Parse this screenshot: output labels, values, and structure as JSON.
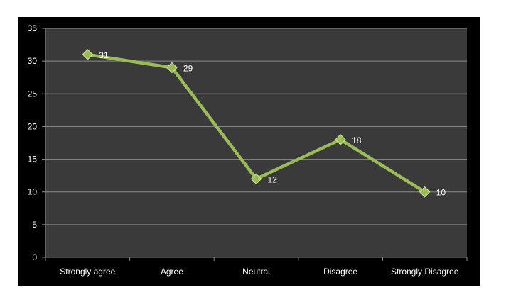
{
  "chart_data": {
    "type": "line",
    "categories": [
      "Strongly agree",
      "Agree",
      "Neutral",
      "Disagree",
      "Strongly Disagree"
    ],
    "series": [
      {
        "values": [
          31,
          29,
          12,
          18,
          10
        ]
      }
    ],
    "data_labels": [
      "31",
      "29",
      "12",
      "18",
      "10"
    ],
    "y_ticks": [
      "0",
      "5",
      "10",
      "15",
      "20",
      "25",
      "30",
      "35"
    ],
    "ylim": [
      0,
      35
    ],
    "grid": true,
    "marker": "diamond",
    "colors": {
      "background": "#000000",
      "plot_area": "#3a3a3a",
      "gridline": "#8c8c8c",
      "line": "#9bbb59",
      "marker_fill": "#9bbb59",
      "marker_edge": "#c9e08f",
      "text": "#ffffff"
    }
  }
}
